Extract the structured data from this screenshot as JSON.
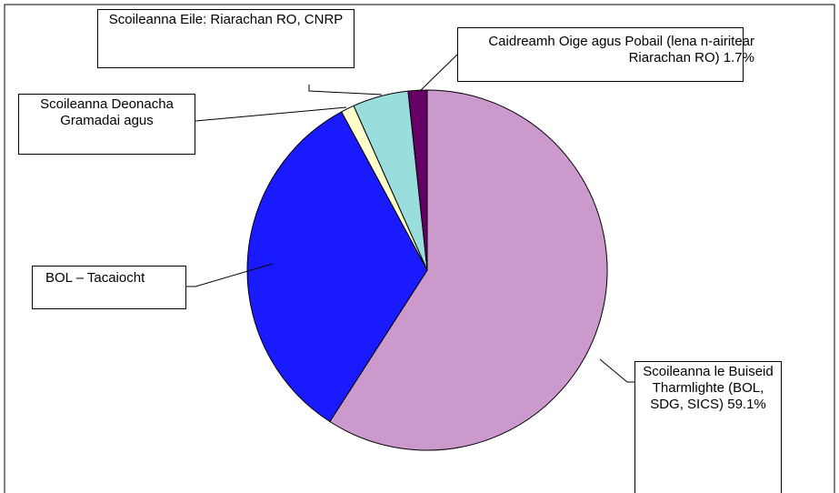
{
  "chart_data": {
    "type": "pie",
    "categories": [
      "Scoileanna le Buiseid Tharmlighte (BOL, SDG, SICS)",
      "BOL – Tacaiocht",
      "Scoileanna Deonacha Gramadai agus",
      "Scoileanna Eile: Riarachan RO, CNRP",
      "Caidreamh Oige agus Pobail (lena n-airitear Riarachan RO)"
    ],
    "values": [
      59.1,
      33.0,
      1.2,
      5.0,
      1.7
    ],
    "value_labels": [
      "59.1%",
      null,
      null,
      null,
      "1.7%"
    ],
    "colors": [
      "#cc99cc",
      "#1a1aff",
      "#ffffcc",
      "#99dddd",
      "#660066"
    ]
  }
}
